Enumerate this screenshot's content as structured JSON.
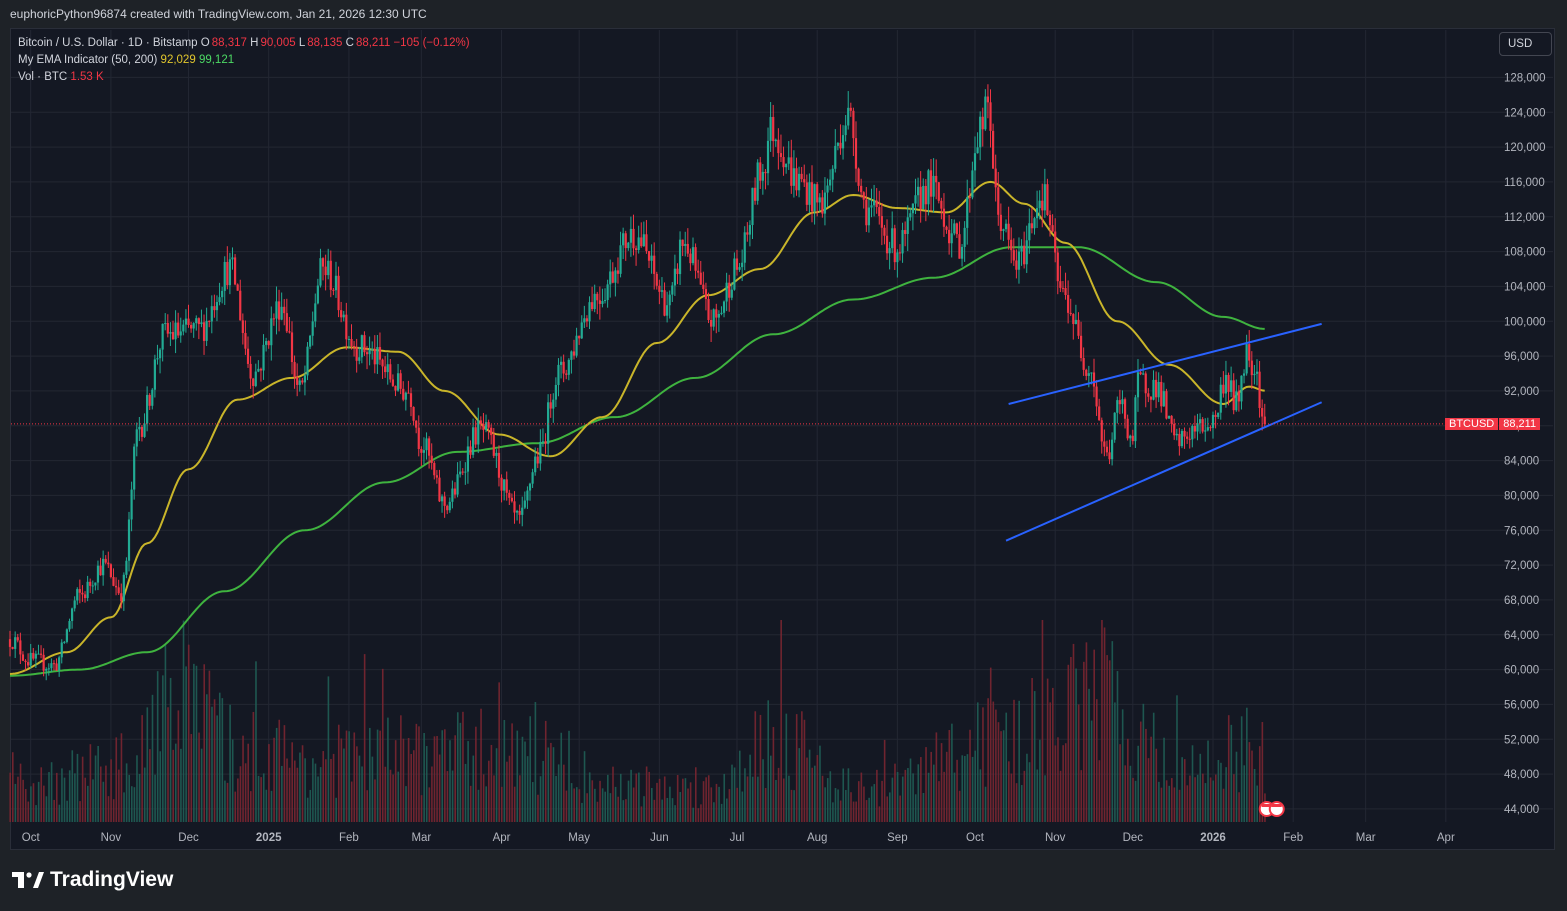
{
  "header": {
    "caption": "euphoricPython96874 created with TradingView.com, Jan 21, 2026 12:30 UTC"
  },
  "legend": {
    "symbol": "Bitcoin / U.S. Dollar · 1D · Bitstamp",
    "o_label": "O",
    "o_value": "88,317",
    "h_label": "H",
    "h_value": "90,005",
    "l_label": "L",
    "l_value": "88,135",
    "c_label": "C",
    "c_value": "88,211",
    "change": "−105 (−0.12%)",
    "ema_name": "My EMA Indicator (50, 200)",
    "ema50_value": "92,029",
    "ema200_value": "99,121",
    "vol_name": "Vol · BTC",
    "vol_value": "1.53 K"
  },
  "currency_button": "USD",
  "price_tag": {
    "symbol": "BTCUSD",
    "value": "88,211"
  },
  "footer": {
    "brand": "TradingView"
  },
  "colors": {
    "up": "#22ab94",
    "down": "#f23645",
    "ema50": "#c9b52a",
    "ema200": "#3fb33f",
    "trendline": "#2962ff",
    "background": "#141823",
    "grid": "#232733"
  },
  "chart_data": {
    "type": "candlestick",
    "title": "Bitcoin / U.S. Dollar · 1D · Bitstamp",
    "x_tick_labels": [
      "Oct",
      "Nov",
      "Dec",
      "2025",
      "Feb",
      "Mar",
      "Apr",
      "May",
      "Jun",
      "Jul",
      "Aug",
      "Sep",
      "Oct",
      "Nov",
      "Dec",
      "2026",
      "Feb",
      "Mar",
      "Apr"
    ],
    "y_tick_labels": [
      "44,000",
      "48,000",
      "52,000",
      "56,000",
      "60,000",
      "64,000",
      "68,000",
      "72,000",
      "76,000",
      "80,000",
      "84,000",
      "88,000",
      "92,000",
      "96,000",
      "100,000",
      "104,000",
      "108,000",
      "112,000",
      "116,000",
      "120,000",
      "124,000",
      "128,000"
    ],
    "ylim": [
      42500,
      130000
    ],
    "x_range": [
      "2024-09-23",
      "2026-04-20"
    ],
    "last_price": 88211,
    "price_path": [
      [
        "2024-09-23",
        63500
      ],
      [
        "2024-10-01",
        61000
      ],
      [
        "2024-10-10",
        60500
      ],
      [
        "2024-10-20",
        68500
      ],
      [
        "2024-10-29",
        72000
      ],
      [
        "2024-11-05",
        69000
      ],
      [
        "2024-11-12",
        88000
      ],
      [
        "2024-11-22",
        98500
      ],
      [
        "2024-12-05",
        99000
      ],
      [
        "2024-12-17",
        106000
      ],
      [
        "2024-12-26",
        94000
      ],
      [
        "2025-01-06",
        102000
      ],
      [
        "2025-01-13",
        92000
      ],
      [
        "2025-01-22",
        106000
      ],
      [
        "2025-02-05",
        97000
      ],
      [
        "2025-02-24",
        92000
      ],
      [
        "2025-03-01",
        86000
      ],
      [
        "2025-03-10",
        79000
      ],
      [
        "2025-03-24",
        87500
      ],
      [
        "2025-04-08",
        77000
      ],
      [
        "2025-04-15",
        84500
      ],
      [
        "2025-04-23",
        94000
      ],
      [
        "2025-05-08",
        103000
      ],
      [
        "2025-05-22",
        110000
      ],
      [
        "2025-06-05",
        102000
      ],
      [
        "2025-06-10",
        109000
      ],
      [
        "2025-06-22",
        100000
      ],
      [
        "2025-07-01",
        106000
      ],
      [
        "2025-07-11",
        117500
      ],
      [
        "2025-07-14",
        122000
      ],
      [
        "2025-07-25",
        116000
      ],
      [
        "2025-08-02",
        113500
      ],
      [
        "2025-08-13",
        123500
      ],
      [
        "2025-08-20",
        113000
      ],
      [
        "2025-09-01",
        108500
      ],
      [
        "2025-09-13",
        115500
      ],
      [
        "2025-09-25",
        109000
      ],
      [
        "2025-10-03",
        122000
      ],
      [
        "2025-10-06",
        124500
      ],
      [
        "2025-10-10",
        112000
      ],
      [
        "2025-10-17",
        106500
      ],
      [
        "2025-10-27",
        114500
      ],
      [
        "2025-11-04",
        103000
      ],
      [
        "2025-11-14",
        95000
      ],
      [
        "2025-11-21",
        84500
      ],
      [
        "2025-11-26",
        90500
      ],
      [
        "2025-12-01",
        86500
      ],
      [
        "2025-12-03",
        93000
      ],
      [
        "2025-12-10",
        92500
      ],
      [
        "2025-12-18",
        86000
      ],
      [
        "2025-12-25",
        87500
      ],
      [
        "2026-01-01",
        88500
      ],
      [
        "2026-01-06",
        93500
      ],
      [
        "2026-01-10",
        90500
      ],
      [
        "2026-01-14",
        96500
      ],
      [
        "2026-01-17",
        95000
      ],
      [
        "2026-01-21",
        88211
      ]
    ],
    "ema50_path": [
      [
        "2024-09-23",
        59500
      ],
      [
        "2024-10-15",
        62000
      ],
      [
        "2024-11-01",
        66000
      ],
      [
        "2024-11-15",
        74500
      ],
      [
        "2024-12-01",
        83000
      ],
      [
        "2024-12-20",
        91000
      ],
      [
        "2025-01-10",
        93500
      ],
      [
        "2025-01-31",
        97000
      ],
      [
        "2025-02-20",
        96500
      ],
      [
        "2025-03-10",
        92000
      ],
      [
        "2025-03-31",
        87000
      ],
      [
        "2025-04-20",
        84500
      ],
      [
        "2025-05-10",
        89000
      ],
      [
        "2025-05-31",
        97500
      ],
      [
        "2025-06-20",
        103000
      ],
      [
        "2025-07-10",
        106000
      ],
      [
        "2025-07-31",
        112500
      ],
      [
        "2025-08-15",
        114500
      ],
      [
        "2025-09-01",
        113000
      ],
      [
        "2025-09-20",
        112500
      ],
      [
        "2025-10-07",
        116000
      ],
      [
        "2025-10-20",
        113500
      ],
      [
        "2025-11-05",
        109000
      ],
      [
        "2025-11-25",
        100000
      ],
      [
        "2025-12-15",
        95000
      ],
      [
        "2026-01-05",
        90500
      ],
      [
        "2026-01-15",
        92500
      ],
      [
        "2026-01-21",
        92029
      ]
    ],
    "ema200_path": [
      [
        "2024-09-23",
        59300
      ],
      [
        "2024-10-20",
        60000
      ],
      [
        "2024-11-15",
        62000
      ],
      [
        "2024-12-15",
        69000
      ],
      [
        "2025-01-15",
        76000
      ],
      [
        "2025-02-15",
        81500
      ],
      [
        "2025-03-15",
        85000
      ],
      [
        "2025-04-15",
        86000
      ],
      [
        "2025-05-15",
        89000
      ],
      [
        "2025-06-15",
        93500
      ],
      [
        "2025-07-15",
        98500
      ],
      [
        "2025-08-15",
        102500
      ],
      [
        "2025-09-15",
        105000
      ],
      [
        "2025-10-15",
        108500
      ],
      [
        "2025-11-10",
        108500
      ],
      [
        "2025-12-10",
        104500
      ],
      [
        "2026-01-05",
        100500
      ],
      [
        "2026-01-21",
        99121
      ]
    ],
    "trendlines": [
      {
        "from": [
          "2025-10-14",
          90500
        ],
        "to": [
          "2026-02-12",
          99700
        ]
      },
      {
        "from": [
          "2025-10-13",
          74800
        ],
        "to": [
          "2026-02-12",
          90700
        ]
      }
    ],
    "volume_axis_max": 4.5,
    "volume_unit": "K BTC",
    "volume_profile": [
      [
        "2024-09-23",
        0.9
      ],
      [
        "2024-11-10",
        1.4
      ],
      [
        "2024-11-22",
        3.5
      ],
      [
        "2024-12-20",
        1.8
      ],
      [
        "2025-01-20",
        1.5
      ],
      [
        "2025-03-03",
        1.7
      ],
      [
        "2025-04-07",
        1.8
      ],
      [
        "2025-05-15",
        0.9
      ],
      [
        "2025-06-20",
        0.8
      ],
      [
        "2025-07-14",
        2.1
      ],
      [
        "2025-08-20",
        0.8
      ],
      [
        "2025-10-10",
        2.0
      ],
      [
        "2025-11-20",
        3.0
      ],
      [
        "2025-12-20",
        1.2
      ],
      [
        "2026-01-15",
        1.9
      ],
      [
        "2026-01-21",
        1.53
      ]
    ]
  }
}
